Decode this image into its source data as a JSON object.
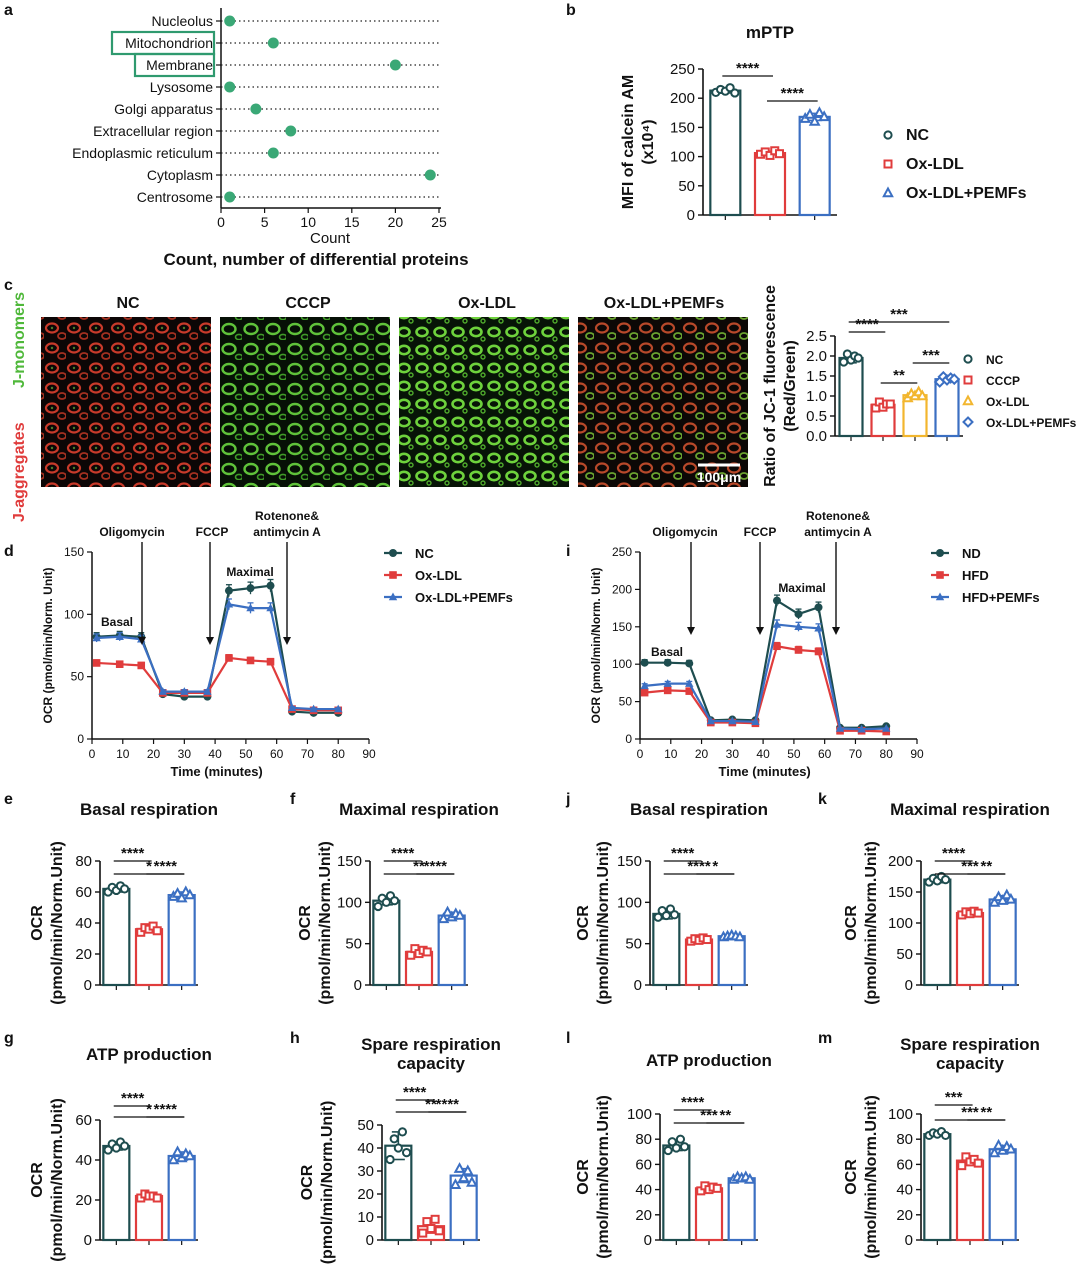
{
  "figure_colors": {
    "nc": "#1e4d4f",
    "oxldl": "#e03c3c",
    "pemf": "#3b6fc2",
    "ccp": "#f2b62e",
    "green_dot": "#3aa876",
    "box": "#2f9a6f"
  },
  "chart_data": [
    {
      "id": "a",
      "panel_label": "a",
      "type": "scatter",
      "title": "",
      "xlabel": "Count",
      "caption": "Count, number of differential proteins",
      "xlim": [
        0,
        25
      ],
      "xticks": [
        "0",
        "5",
        "10",
        "15",
        "20",
        "25"
      ],
      "categories": [
        "Nucleolus",
        "Mitochondrion",
        "Membrane",
        "Lysosome",
        "Golgi apparatus",
        "Extracellular region",
        "Endoplasmic reticulum",
        "Cytoplasm",
        "Centrosome"
      ],
      "values": [
        1,
        6,
        20,
        1,
        4,
        8,
        6,
        24,
        1
      ],
      "boxed": [
        "Mitochondrion",
        "Membrane"
      ]
    },
    {
      "id": "b",
      "panel_label": "b",
      "type": "bar",
      "title": "mPTP",
      "ylabel": [
        "MFI of calcein AM",
        "(x10⁴)"
      ],
      "ylim": [
        0,
        250
      ],
      "yticks": [
        "0",
        "50",
        "100",
        "150",
        "200",
        "250"
      ],
      "values": [
        213,
        106,
        168
      ],
      "errors": [
        4,
        3,
        6
      ],
      "points": [
        [
          210,
          215,
          212,
          218,
          209
        ],
        [
          104,
          108,
          102,
          110,
          105
        ],
        [
          165,
          172,
          160,
          175,
          168
        ]
      ],
      "legend": [
        "NC",
        "Ox-LDL",
        "Ox-LDL+PEMFs"
      ],
      "sig": [
        {
          "pair": [
            0,
            1
          ],
          "label": "****"
        },
        {
          "pair": [
            1,
            2
          ],
          "label": "****"
        }
      ]
    },
    {
      "id": "c",
      "panel_label": "c",
      "type": "bar",
      "title": "",
      "ylabel": [
        "Ratio of JC-1 fluorescence",
        "(Red/Green)"
      ],
      "ylim": [
        0,
        2.5
      ],
      "yticks": [
        "0.0",
        "0.5",
        "1.0",
        "1.5",
        "2.0",
        "2.5"
      ],
      "values": [
        1.95,
        0.78,
        1.02,
        1.42
      ],
      "errors": [
        0.12,
        0.08,
        0.07,
        0.06
      ],
      "points": [
        [
          1.85,
          2.05,
          1.9,
          2.0,
          1.95
        ],
        [
          0.7,
          0.85,
          0.72,
          0.8,
          0.8
        ],
        [
          0.95,
          1.05,
          1.0,
          1.1,
          1.0
        ],
        [
          1.35,
          1.48,
          1.4,
          1.45,
          1.42
        ]
      ],
      "legend": [
        "NC",
        "CCCP",
        "Ox-LDL",
        "Ox-LDL+PEMFs"
      ],
      "sig": [
        {
          "pair": [
            0,
            1
          ],
          "label": "****"
        },
        {
          "pair": [
            0,
            3
          ],
          "label": "***"
        },
        {
          "pair": [
            1,
            2
          ],
          "label": "**"
        },
        {
          "pair": [
            2,
            3
          ],
          "label": "***"
        }
      ]
    },
    {
      "id": "d",
      "panel_label": "d",
      "type": "line",
      "title": "",
      "xlabel": "Time (minutes)",
      "ylabel": [
        "OCR (pmol/min/Norm. Unit)"
      ],
      "xlim": [
        0,
        90
      ],
      "ylim": [
        0,
        150
      ],
      "xticks": [
        "0",
        "10",
        "20",
        "30",
        "40",
        "50",
        "60",
        "70",
        "80",
        "90"
      ],
      "yticks": [
        "0",
        "50",
        "100",
        "150"
      ],
      "x": [
        1.5,
        9,
        16,
        23,
        30,
        37.5,
        44.5,
        51.5,
        58,
        65,
        72,
        80
      ],
      "series": [
        {
          "name": "NC",
          "values": [
            82,
            83,
            82,
            36,
            34,
            34,
            119,
            121,
            123,
            22,
            21,
            21
          ]
        },
        {
          "name": "Ox-LDL",
          "values": [
            61,
            60,
            59,
            37,
            37,
            37,
            65,
            63,
            62,
            24,
            23,
            23
          ]
        },
        {
          "name": "Ox-LDL+PEMFs",
          "values": [
            81,
            82,
            80,
            38,
            38,
            38,
            108,
            105,
            105,
            25,
            24,
            24
          ]
        }
      ],
      "annotations": [
        "Oligomycin",
        "FCCP",
        "Rotenone&",
        "antimycin A",
        "Basal",
        "Maximal"
      ]
    },
    {
      "id": "i",
      "panel_label": "i",
      "type": "line",
      "title": "",
      "xlabel": "Time (minutes)",
      "ylabel": [
        "OCR (pmol/min/Norm. Unit)"
      ],
      "xlim": [
        0,
        90
      ],
      "ylim": [
        0,
        250
      ],
      "xticks": [
        "0",
        "10",
        "20",
        "30",
        "40",
        "50",
        "60",
        "70",
        "80",
        "90"
      ],
      "yticks": [
        "0",
        "50",
        "100",
        "150",
        "200",
        "250"
      ],
      "x": [
        1.5,
        9,
        16,
        23,
        30,
        37.5,
        44.5,
        51.5,
        58,
        65,
        72,
        80
      ],
      "series": [
        {
          "name": "ND",
          "values": [
            102,
            102,
            101,
            25,
            26,
            25,
            185,
            167,
            176,
            15,
            15,
            17
          ]
        },
        {
          "name": "HFD",
          "values": [
            62,
            65,
            64,
            22,
            22,
            21,
            124,
            119,
            117,
            11,
            11,
            10
          ]
        },
        {
          "name": "HFD+PEMFs",
          "values": [
            71,
            74,
            74,
            24,
            24,
            23,
            153,
            150,
            148,
            14,
            13,
            14
          ]
        }
      ],
      "annotations": [
        "Oligomycin",
        "FCCP",
        "Rotenone&",
        "antimycin A",
        "Basal",
        "Maximal"
      ]
    },
    {
      "id": "e",
      "panel_label": "e",
      "type": "bar",
      "title": "Basal respiration",
      "ylabel": [
        "OCR",
        "(pmol/min/Norm.Unit)"
      ],
      "ylim": [
        0,
        80
      ],
      "yticks": [
        "0",
        "20",
        "40",
        "60",
        "80"
      ],
      "values": [
        62,
        36,
        58
      ],
      "errors": [
        2,
        2,
        2
      ],
      "points": [
        [
          60,
          63,
          61,
          64,
          62
        ],
        [
          34,
          37,
          36,
          38,
          35
        ],
        [
          57,
          59,
          56,
          60,
          58
        ]
      ],
      "sig": [
        {
          "pair": [
            0,
            1
          ],
          "label": "****"
        },
        {
          "pair": [
            0,
            2
          ],
          "label": "*"
        },
        {
          "pair": [
            1,
            2
          ],
          "label": "****"
        }
      ]
    },
    {
      "id": "f",
      "panel_label": "f",
      "type": "bar",
      "title": "Maximal respiration",
      "ylabel": [
        "OCR",
        "(pmol/min/Norm.Unit)"
      ],
      "ylim": [
        0,
        150
      ],
      "yticks": [
        "0",
        "50",
        "100",
        "150"
      ],
      "values": [
        102,
        40,
        84
      ],
      "errors": [
        5,
        4,
        4
      ],
      "points": [
        [
          95,
          105,
          100,
          108,
          102
        ],
        [
          36,
          44,
          38,
          42,
          40
        ],
        [
          80,
          88,
          82,
          86,
          84
        ]
      ],
      "sig": [
        {
          "pair": [
            0,
            1
          ],
          "label": "****"
        },
        {
          "pair": [
            0,
            2
          ],
          "label": "**"
        },
        {
          "pair": [
            1,
            2
          ],
          "label": "****"
        }
      ]
    },
    {
      "id": "j",
      "panel_label": "j",
      "type": "bar",
      "title": "Basal respiration",
      "ylabel": [
        "OCR",
        "(pmol/min/Norm.Unit)"
      ],
      "ylim": [
        0,
        150
      ],
      "yticks": [
        "0",
        "50",
        "100",
        "150"
      ],
      "values": [
        86,
        55,
        59
      ],
      "errors": [
        6,
        2,
        1
      ],
      "points": [
        [
          82,
          90,
          84,
          92,
          85
        ],
        [
          53,
          56,
          54,
          57,
          55
        ],
        [
          58,
          59,
          60,
          59,
          58
        ]
      ],
      "sig": [
        {
          "pair": [
            0,
            1
          ],
          "label": "****"
        },
        {
          "pair": [
            0,
            2
          ],
          "label": "****"
        },
        {
          "pair": [
            1,
            2
          ],
          "label": "*"
        }
      ]
    },
    {
      "id": "k",
      "panel_label": "k",
      "type": "bar",
      "title": "Maximal respiration",
      "ylabel": [
        "OCR",
        "(pmol/min/Norm.Unit)"
      ],
      "ylim": [
        0,
        200
      ],
      "yticks": [
        "0",
        "50",
        "100",
        "150",
        "200"
      ],
      "values": [
        170,
        116,
        138
      ],
      "errors": [
        5,
        4,
        6
      ],
      "points": [
        [
          166,
          172,
          168,
          175,
          170
        ],
        [
          113,
          118,
          115,
          119,
          116
        ],
        [
          133,
          142,
          136,
          145,
          138
        ]
      ],
      "sig": [
        {
          "pair": [
            0,
            1
          ],
          "label": "****"
        },
        {
          "pair": [
            0,
            2
          ],
          "label": "***"
        },
        {
          "pair": [
            1,
            2
          ],
          "label": "**"
        }
      ]
    },
    {
      "id": "g",
      "panel_label": "g",
      "type": "bar",
      "title": "ATP production",
      "ylabel": [
        "OCR",
        "(pmol/min/Norm.Unit)"
      ],
      "ylim": [
        0,
        60
      ],
      "yticks": [
        "0",
        "20",
        "40",
        "60"
      ],
      "values": [
        47,
        22,
        42
      ],
      "errors": [
        2,
        1,
        2
      ],
      "points": [
        [
          45,
          48,
          46,
          49,
          47
        ],
        [
          21,
          23,
          22,
          22,
          21
        ],
        [
          40,
          44,
          41,
          43,
          42
        ]
      ],
      "sig": [
        {
          "pair": [
            0,
            1
          ],
          "label": "****"
        },
        {
          "pair": [
            0,
            2
          ],
          "label": "*"
        },
        {
          "pair": [
            1,
            2
          ],
          "label": "****"
        }
      ]
    },
    {
      "id": "h",
      "panel_label": "h",
      "type": "bar",
      "title": [
        "Spare respiration",
        "capacity"
      ],
      "ylabel": [
        "OCR",
        "(pmol/min/Norm.Unit)"
      ],
      "ylim": [
        0,
        50
      ],
      "yticks": [
        "0",
        "10",
        "20",
        "30",
        "40",
        "50"
      ],
      "values": [
        41,
        6,
        28
      ],
      "errors": [
        6,
        3,
        3
      ],
      "points": [
        [
          35,
          44,
          40,
          47,
          38
        ],
        [
          3,
          8,
          5,
          9,
          4
        ],
        [
          24,
          31,
          27,
          30,
          25
        ]
      ],
      "sig": [
        {
          "pair": [
            0,
            1
          ],
          "label": "****"
        },
        {
          "pair": [
            0,
            2
          ],
          "label": "**"
        },
        {
          "pair": [
            1,
            2
          ],
          "label": "****"
        }
      ]
    },
    {
      "id": "l",
      "panel_label": "l",
      "type": "bar",
      "title": "ATP production",
      "ylabel": [
        "OCR",
        "(pmol/min/Norm.Unit)"
      ],
      "ylim": [
        0,
        100
      ],
      "yticks": [
        "0",
        "20",
        "40",
        "60",
        "80",
        "100"
      ],
      "values": [
        75,
        41,
        49
      ],
      "errors": [
        4,
        2,
        1
      ],
      "points": [
        [
          71,
          78,
          73,
          80,
          74
        ],
        [
          39,
          43,
          40,
          42,
          41
        ],
        [
          48,
          50,
          49,
          50,
          48
        ]
      ],
      "sig": [
        {
          "pair": [
            0,
            1
          ],
          "label": "****"
        },
        {
          "pair": [
            0,
            2
          ],
          "label": "***"
        },
        {
          "pair": [
            1,
            2
          ],
          "label": "**"
        }
      ]
    },
    {
      "id": "m",
      "panel_label": "m",
      "type": "bar",
      "title": [
        "Spare respiration",
        "capacity"
      ],
      "ylabel": [
        "OCR",
        "(pmol/min/Norm.Unit)"
      ],
      "ylim": [
        0,
        100
      ],
      "yticks": [
        "0",
        "20",
        "40",
        "60",
        "80",
        "100"
      ],
      "values": [
        84,
        63,
        72
      ],
      "errors": [
        1,
        3,
        3
      ],
      "points": [
        [
          83,
          85,
          84,
          86,
          83
        ],
        [
          59,
          66,
          62,
          64,
          61
        ],
        [
          69,
          75,
          71,
          74,
          72
        ]
      ],
      "sig": [
        {
          "pair": [
            0,
            1
          ],
          "label": "***"
        },
        {
          "pair": [
            0,
            2
          ],
          "label": "***"
        },
        {
          "pair": [
            1,
            2
          ],
          "label": "**"
        }
      ]
    }
  ],
  "microscopy": {
    "panel_label": "c",
    "side_label_red": "J-aggregates",
    "side_label_green": "J-monomers",
    "columns": [
      "NC",
      "CCCP",
      "Ox-LDL",
      "Ox-LDL+PEMFs"
    ],
    "scale_bar": "100μm"
  }
}
